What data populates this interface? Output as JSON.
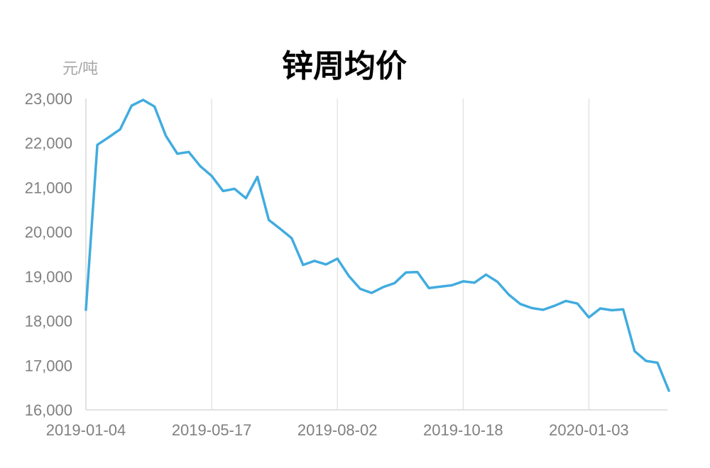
{
  "chart_data": {
    "type": "line",
    "title": "锌周均价",
    "ylabel": "元/吨",
    "xlabel": "",
    "ylim": [
      16000,
      23000
    ],
    "yticks": [
      16000,
      17000,
      18000,
      19000,
      20000,
      21000,
      22000,
      23000
    ],
    "ytick_labels": [
      "16,000",
      "17,000",
      "18,000",
      "19,000",
      "20,000",
      "21,000",
      "22,000",
      "23,000"
    ],
    "xtick_labels": [
      "2019-01-04",
      "2019-05-17",
      "2019-08-02",
      "2019-10-18",
      "2020-01-03"
    ],
    "xtick_indices": [
      0,
      11,
      22,
      33,
      44
    ],
    "grid": "vertical",
    "line_color": "#41acdf",
    "series": [
      {
        "values": [
          18250,
          21960,
          22130,
          22310,
          22840,
          22970,
          22820,
          22160,
          21760,
          21800,
          21480,
          21260,
          20920,
          20970,
          20760,
          21240,
          20270,
          20070,
          19860,
          19260,
          19350,
          19270,
          19400,
          19010,
          18720,
          18630,
          18760,
          18850,
          19090,
          19100,
          18740,
          18770,
          18800,
          18890,
          18860,
          19040,
          18880,
          18590,
          18380,
          18290,
          18250,
          18340,
          18450,
          18390,
          18080,
          18280,
          18240,
          18260,
          17320,
          17100,
          17060,
          16430
        ]
      }
    ]
  }
}
